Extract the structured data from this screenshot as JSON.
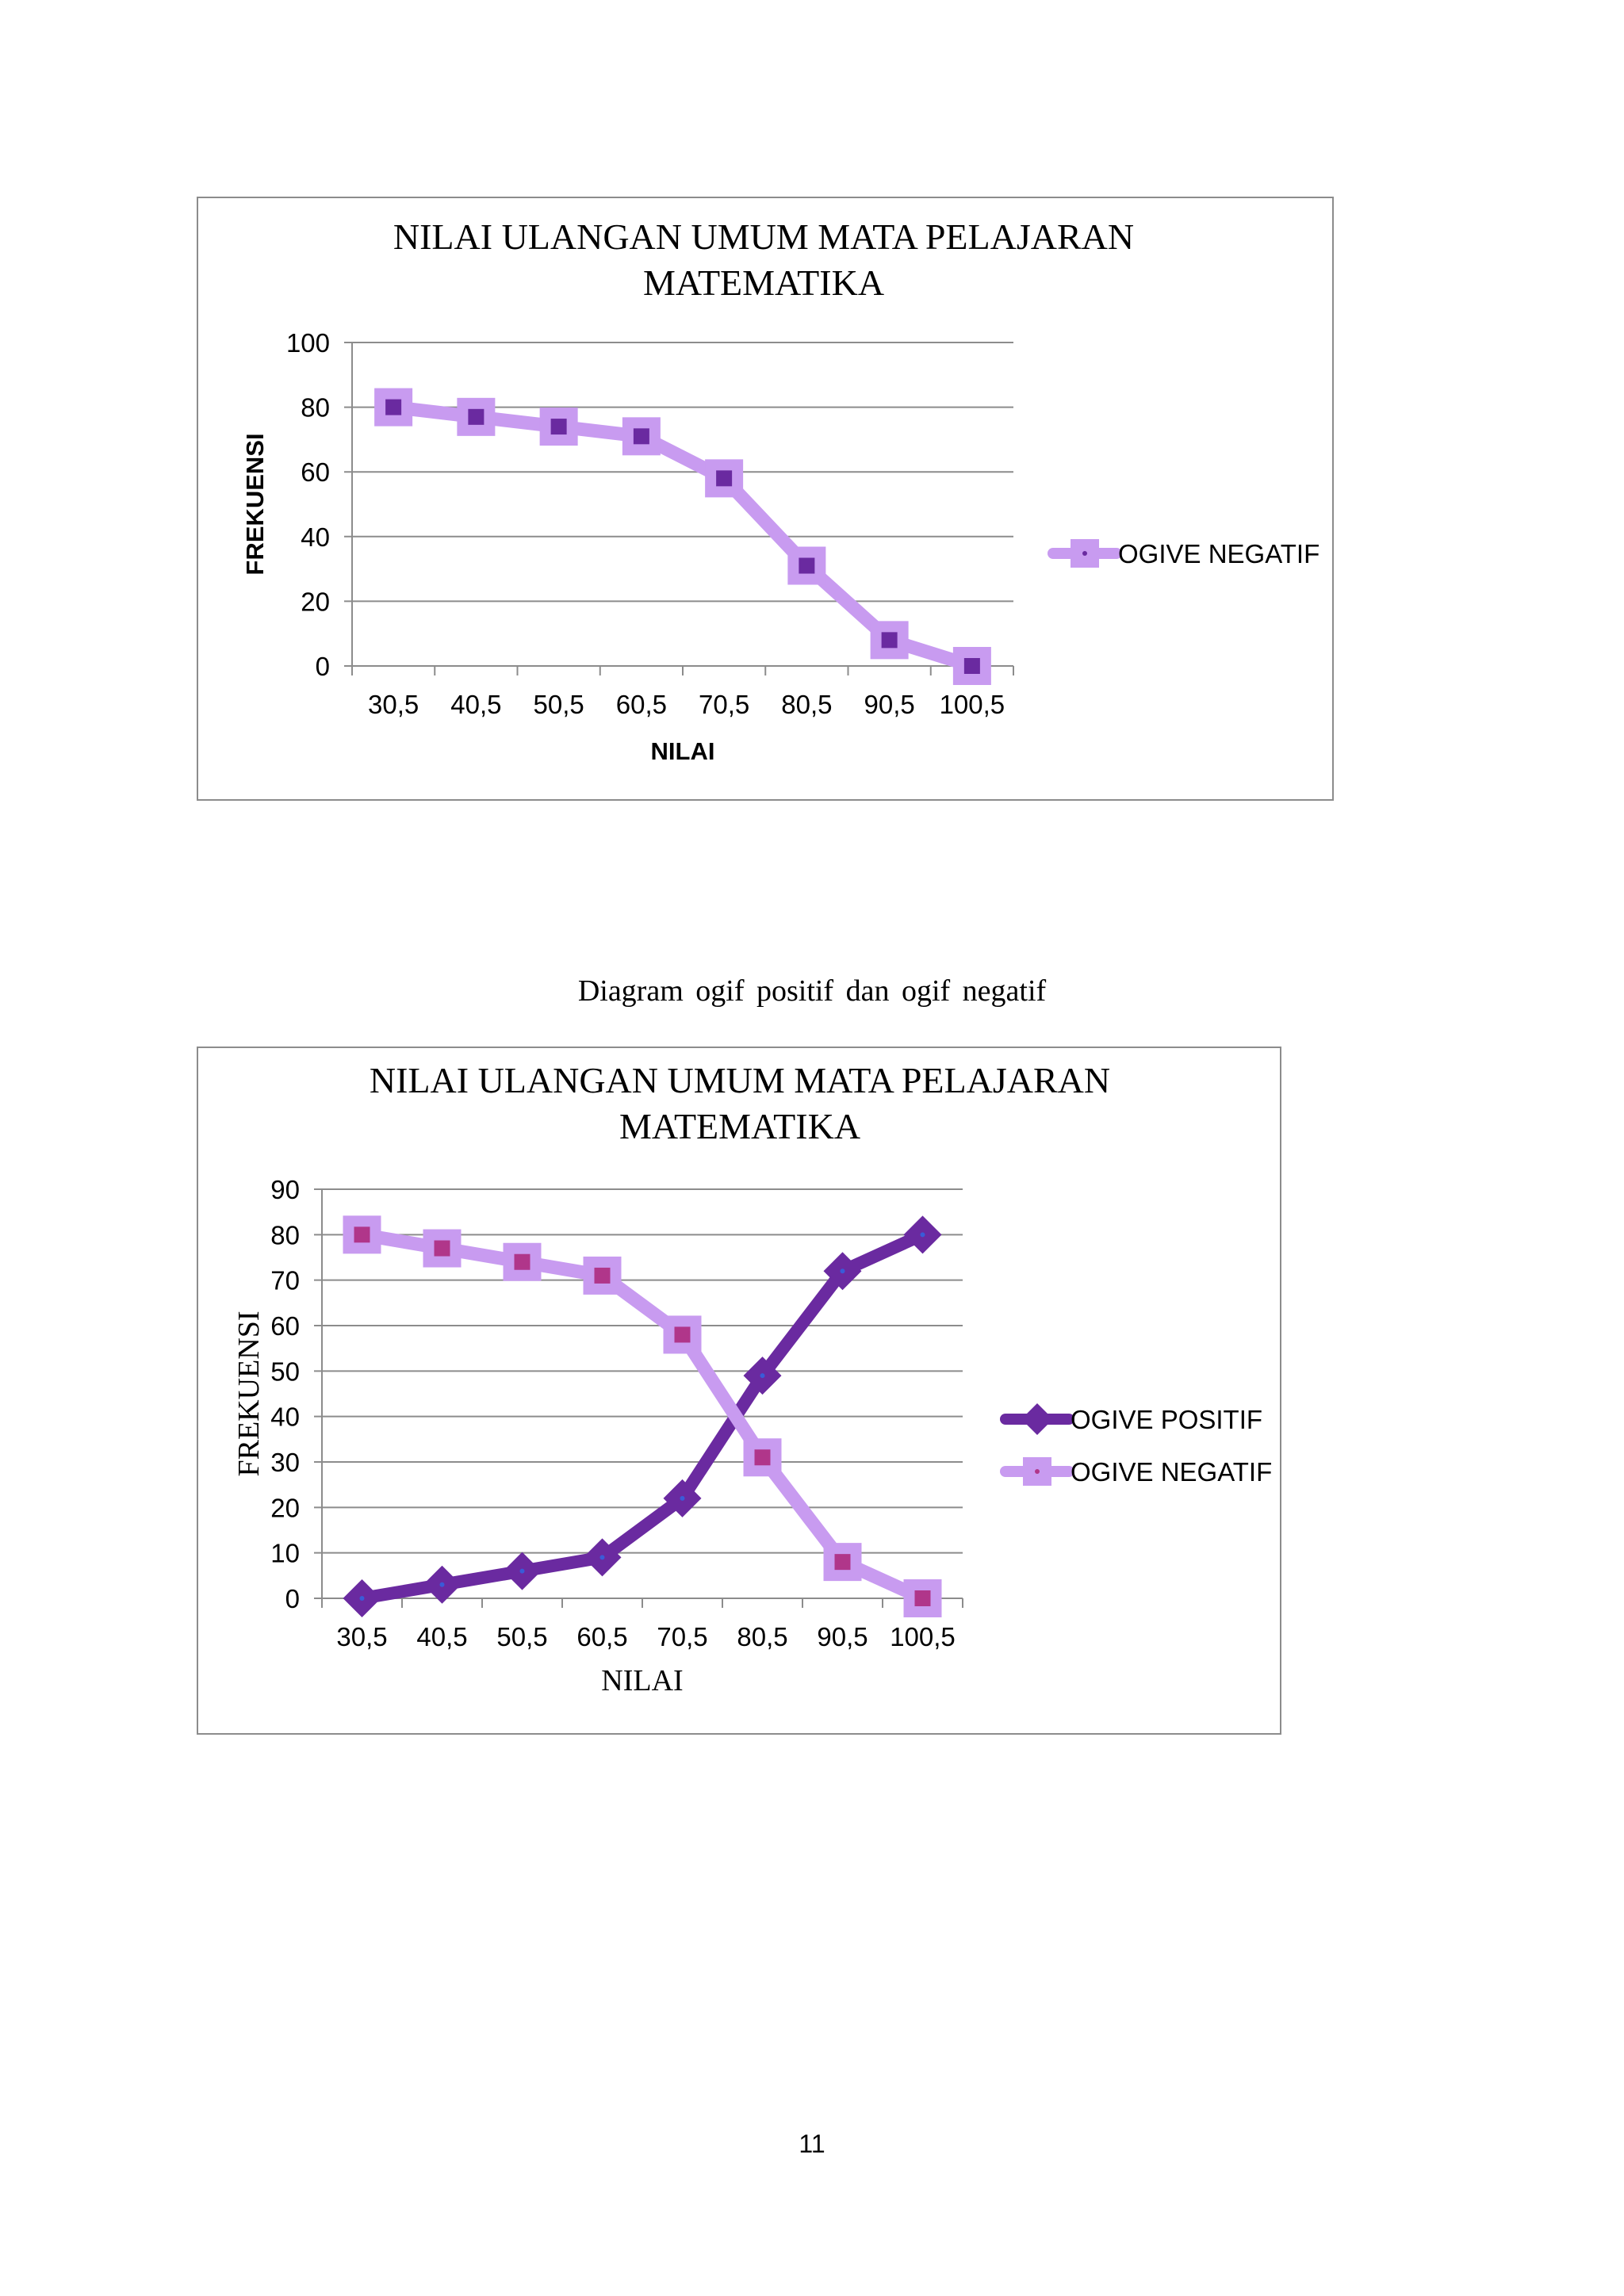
{
  "caption": "Diagram  ogif  positif  dan ogif  negatif",
  "page_number": "11",
  "colors": {
    "negative_line": "#C89BF0",
    "negative_marker_inner_1": "#6A2AA0",
    "negative_marker_inner_2": "#B0368A",
    "positive_line": "#6A2AA0",
    "positive_marker_dot": "#3A5BD8",
    "gridline": "#8c8c8c"
  },
  "chart_data": [
    {
      "type": "line",
      "title_lines": [
        "NILAI ULANGAN UMUM MATA PELAJARAN",
        "MATEMATIKA"
      ],
      "xlabel": "NILAI",
      "ylabel": "FREKUENSI",
      "categories": [
        "30,5",
        "40,5",
        "50,5",
        "60,5",
        "70,5",
        "80,5",
        "90,5",
        "100,5"
      ],
      "ylim": [
        0,
        100
      ],
      "yticks": [
        "0",
        "20",
        "40",
        "60",
        "80",
        "100"
      ],
      "grid": true,
      "legend_position": "right",
      "series": [
        {
          "name": "OGIVE NEGATIF",
          "values": [
            80,
            77,
            74,
            71,
            58,
            31,
            8,
            0
          ],
          "marker": "square"
        }
      ]
    },
    {
      "type": "line",
      "title_lines": [
        "NILAI ULANGAN UMUM MATA PELAJARAN",
        "MATEMATIKA"
      ],
      "xlabel": "NILAI",
      "ylabel": "FREKUENSI",
      "categories": [
        "30,5",
        "40,5",
        "50,5",
        "60,5",
        "70,5",
        "80,5",
        "90,5",
        "100,5"
      ],
      "ylim": [
        0,
        90
      ],
      "yticks": [
        "0",
        "10",
        "20",
        "30",
        "40",
        "50",
        "60",
        "70",
        "80",
        "90"
      ],
      "grid": true,
      "legend_position": "right",
      "series": [
        {
          "name": "OGIVE POSITIF",
          "values": [
            0,
            3,
            6,
            9,
            22,
            49,
            72,
            80
          ],
          "marker": "diamond"
        },
        {
          "name": "OGIVE NEGATIF",
          "values": [
            80,
            77,
            74,
            71,
            58,
            31,
            8,
            0
          ],
          "marker": "square"
        }
      ]
    }
  ]
}
